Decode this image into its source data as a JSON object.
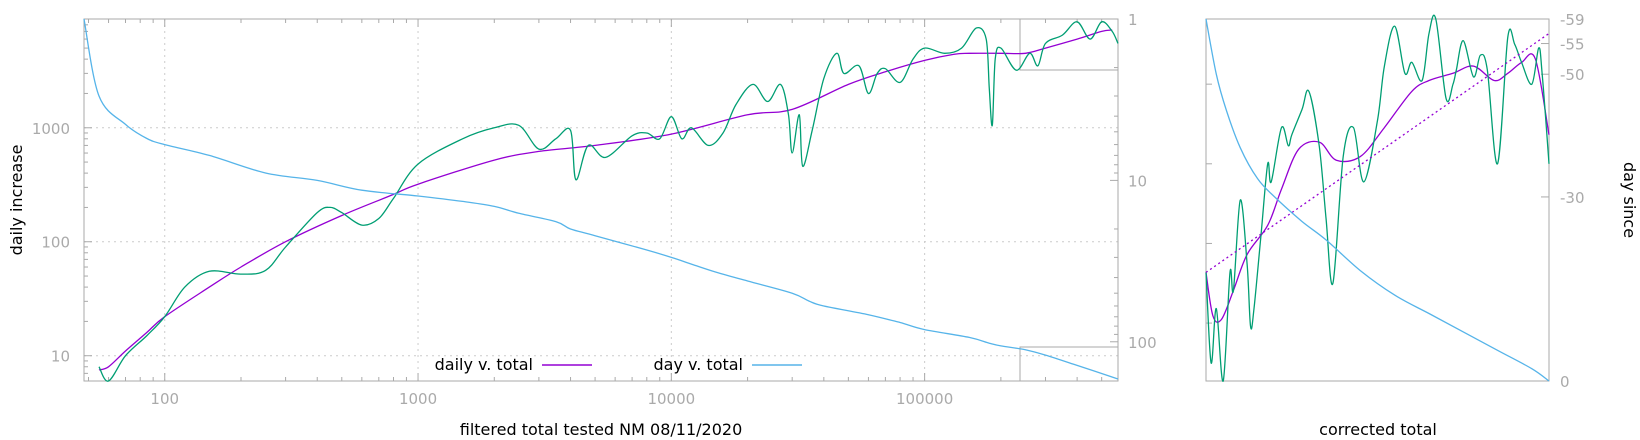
{
  "colors": {
    "daily": "#9400d3",
    "day": "#56b4e9",
    "raw": "#009e73",
    "frame": "#aaaaaa",
    "fit": "#9400d3"
  },
  "left_panel": {
    "xlabel": "filtered total tested NM 08/11/2020",
    "ylabel": "daily increase",
    "x_ticks": [
      "100",
      "1000",
      "10000",
      "100000"
    ],
    "y_ticks": [
      "10",
      "100",
      "1000"
    ],
    "y2_ticks": [
      "1",
      "10",
      "100"
    ],
    "legend": [
      "daily v. total",
      "day v. total"
    ]
  },
  "right_panel": {
    "xlabel": "corrected total",
    "y2label": "day since",
    "y2_ticks": [
      "-59",
      "-55",
      "-50",
      "-30",
      "0"
    ]
  },
  "chart_data": [
    {
      "type": "line",
      "xlabel": "filtered total tested NM 08/11/2020",
      "ylabel": "daily increase",
      "x_scale": "log",
      "y_scale": "log",
      "y2_scale": "log (reversed)",
      "xlim": [
        48,
        580000
      ],
      "ylim": [
        6,
        9000
      ],
      "y2lim": [
        1,
        175
      ],
      "grid": true,
      "legend": "bottom-center",
      "series": [
        {
          "name": "daily v. total",
          "axis": "y",
          "x": [
            55,
            60,
            70,
            85,
            100,
            150,
            200,
            300,
            500,
            800,
            1000,
            2000,
            3000,
            5000,
            10000,
            20000,
            30000,
            50000,
            70000,
            100000,
            130000,
            150000,
            200000,
            250000,
            300000,
            400000,
            500000,
            550000
          ],
          "y": [
            7.5,
            8,
            11,
            16,
            22,
            40,
            60,
            100,
            170,
            260,
            320,
            520,
            620,
            700,
            880,
            1300,
            1450,
            2400,
            3100,
            3900,
            4400,
            4500,
            4500,
            4500,
            5000,
            6000,
            7000,
            7200
          ]
        },
        {
          "name": "",
          "axis": "y",
          "x": [
            55,
            60,
            70,
            85,
            100,
            120,
            150,
            200,
            250,
            300,
            400,
            450,
            500,
            600,
            700,
            800,
            1000,
            1500,
            2000,
            2500,
            3000,
            3500,
            4000,
            4200,
            4700,
            5500,
            7000,
            8000,
            9000,
            10000,
            11000,
            12000,
            14000,
            16000,
            18000,
            21000,
            24000,
            27000,
            29000,
            30000,
            32000,
            33000,
            36000,
            40000,
            45000,
            48000,
            55000,
            60000,
            65000,
            70000,
            80000,
            90000,
            100000,
            120000,
            140000,
            160000,
            175000,
            180000,
            185000,
            190000,
            200000,
            230000,
            260000,
            280000,
            300000,
            350000,
            400000,
            450000,
            500000,
            550000,
            580000
          ],
          "y": [
            8,
            5.5,
            10,
            15,
            22,
            40,
            55,
            52,
            56,
            90,
            180,
            200,
            180,
            140,
            160,
            240,
            480,
            800,
            1000,
            1050,
            650,
            800,
            950,
            350,
            700,
            550,
            850,
            900,
            800,
            1250,
            800,
            1000,
            700,
            900,
            1600,
            2400,
            1700,
            2400,
            1300,
            600,
            1300,
            460,
            950,
            2700,
            4500,
            3000,
            3500,
            2000,
            3000,
            3300,
            2500,
            4000,
            5000,
            4500,
            5000,
            7500,
            6000,
            2200,
            1050,
            4000,
            5000,
            3200,
            4500,
            3500,
            5500,
            6500,
            8500,
            6000,
            8500,
            7000,
            5500
          ]
        },
        {
          "name": "day v. total",
          "axis": "y2",
          "x": [
            48,
            55,
            70,
            85,
            100,
            150,
            250,
            400,
            600,
            1000,
            1500,
            2000,
            2500,
            3500,
            4000,
            5000,
            8000,
            10000,
            12000,
            15000,
            20000,
            30000,
            35000,
            40000,
            60000,
            80000,
            100000,
            150000,
            180000,
            200000,
            250000,
            300000,
            400000,
            580000
          ],
          "y": [
            1,
            3,
            4.5,
            5.5,
            6,
            7,
            9,
            10,
            11.5,
            12.5,
            13.5,
            14.5,
            16,
            18,
            20,
            22,
            27,
            30,
            33,
            37,
            42,
            50,
            56,
            60,
            68,
            76,
            84,
            94,
            102,
            106,
            112,
            121,
            140,
            170
          ]
        }
      ]
    },
    {
      "type": "line",
      "xlabel": "corrected total",
      "y2label": "day since",
      "y2lim": [
        -59,
        0
      ],
      "series": [
        {
          "name": "",
          "role": "smoothed",
          "axis": "y",
          "x": [
            0,
            0.02,
            0.045,
            0.08,
            0.12,
            0.18,
            0.22,
            0.27,
            0.33,
            0.38,
            0.45,
            0.52,
            0.6,
            0.65,
            0.72,
            0.78,
            0.84,
            0.88,
            0.92,
            0.96,
            1.0
          ],
          "y": [
            0.3,
            0.18,
            0.17,
            0.25,
            0.35,
            0.43,
            0.53,
            0.64,
            0.66,
            0.61,
            0.62,
            0.7,
            0.8,
            0.83,
            0.85,
            0.87,
            0.83,
            0.85,
            0.88,
            0.89,
            0.68
          ]
        },
        {
          "name": "",
          "role": "raw",
          "axis": "y",
          "x": [
            0,
            0.015,
            0.03,
            0.05,
            0.07,
            0.08,
            0.1,
            0.12,
            0.13,
            0.14,
            0.16,
            0.18,
            0.19,
            0.22,
            0.24,
            0.25,
            0.28,
            0.3,
            0.33,
            0.35,
            0.37,
            0.4,
            0.43,
            0.46,
            0.5,
            0.52,
            0.55,
            0.58,
            0.6,
            0.63,
            0.65,
            0.67,
            0.7,
            0.72,
            0.73,
            0.75,
            0.78,
            0.8,
            0.82,
            0.85,
            0.88,
            0.9,
            0.92,
            0.95,
            0.97,
            0.98,
            1.0
          ],
          "y": [
            0.3,
            0.05,
            0.2,
            0.0,
            0.3,
            0.25,
            0.5,
            0.32,
            0.15,
            0.2,
            0.4,
            0.6,
            0.55,
            0.7,
            0.65,
            0.68,
            0.75,
            0.8,
            0.65,
            0.45,
            0.27,
            0.62,
            0.7,
            0.55,
            0.72,
            0.87,
            0.98,
            0.85,
            0.88,
            0.83,
            0.96,
            1.0,
            0.78,
            0.82,
            0.86,
            0.94,
            0.84,
            0.9,
            0.86,
            0.6,
            0.95,
            0.93,
            0.88,
            0.82,
            0.92,
            0.85,
            0.6
          ]
        },
        {
          "name": "",
          "role": "linear fit",
          "axis": "y",
          "x": [
            0,
            1.0
          ],
          "y": [
            0.3,
            0.96
          ]
        },
        {
          "name": "",
          "role": "day",
          "axis": "y2",
          "x": [
            0,
            0.03,
            0.06,
            0.1,
            0.15,
            0.2,
            0.28,
            0.35,
            0.45,
            0.55,
            0.65,
            0.75,
            0.85,
            0.95,
            1.0
          ],
          "y": [
            -59,
            -50,
            -44,
            -38,
            -33,
            -30,
            -26,
            -23,
            -18,
            -14,
            -11,
            -8,
            -5,
            -2,
            0
          ]
        }
      ]
    }
  ]
}
